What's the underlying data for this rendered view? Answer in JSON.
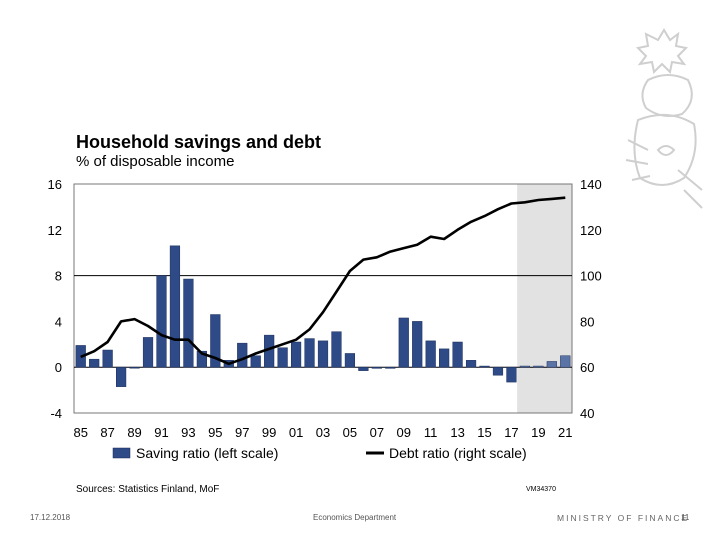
{
  "title": "Household savings and debt",
  "subtitle": "% of disposable income",
  "sources": "Sources: Statistics Finland, MoF",
  "chart_code": "VM34370",
  "footer": {
    "date": "17.12.2018",
    "department": "Economics Department",
    "ministry": "MINISTRY OF FINANCE",
    "page": "11"
  },
  "colors": {
    "bar": "#2e4a87",
    "bar_forecast": "#5a74a8",
    "line": "#000000",
    "shade": "#e2e2e2"
  },
  "chart_data": {
    "type": "bar+line",
    "years": [
      1985,
      1986,
      1987,
      1988,
      1989,
      1990,
      1991,
      1992,
      1993,
      1994,
      1995,
      1996,
      1997,
      1998,
      1999,
      2000,
      2001,
      2002,
      2003,
      2004,
      2005,
      2006,
      2007,
      2008,
      2009,
      2010,
      2011,
      2012,
      2013,
      2014,
      2015,
      2016,
      2017,
      2018,
      2019,
      2020,
      2021
    ],
    "x_tick_labels": [
      "85",
      "87",
      "89",
      "91",
      "93",
      "95",
      "97",
      "99",
      "01",
      "03",
      "05",
      "07",
      "09",
      "11",
      "13",
      "15",
      "17",
      "19",
      "21"
    ],
    "forecast_start_year": 2018,
    "series": [
      {
        "name": "Saving ratio (left scale)",
        "type": "bar",
        "axis": "left",
        "values": [
          1.9,
          0.7,
          1.5,
          -1.7,
          0.0,
          2.6,
          8.0,
          10.6,
          7.7,
          1.4,
          4.6,
          0.6,
          2.1,
          1.0,
          2.8,
          1.7,
          2.2,
          2.5,
          2.3,
          3.1,
          1.2,
          -0.3,
          -0.1,
          -0.1,
          4.3,
          4.0,
          2.3,
          1.6,
          2.2,
          0.6,
          0.1,
          -0.7,
          -1.3,
          0.1,
          0.1,
          0.5,
          1.0
        ]
      },
      {
        "name": "Debt ratio (right scale)",
        "type": "line",
        "axis": "right",
        "values": [
          64.5,
          67,
          71,
          80,
          81,
          78,
          74,
          72,
          72,
          66,
          64,
          61.5,
          63.5,
          66,
          68,
          70,
          72,
          76.5,
          84,
          93,
          102,
          107,
          108,
          110.5,
          112,
          113.5,
          117,
          116,
          120,
          123.5,
          126,
          129,
          131.5,
          132,
          133,
          133.5,
          134
        ]
      }
    ],
    "left_axis": {
      "ylim": [
        -4,
        16
      ],
      "ticks": [
        "16",
        "12",
        "8",
        "4",
        "0",
        "-4"
      ]
    },
    "right_axis": {
      "ylim": [
        40,
        140
      ],
      "ticks": [
        "140",
        "120",
        "100",
        "80",
        "60",
        "40"
      ]
    },
    "legend": [
      "Saving ratio (left scale)",
      "Debt ratio (right scale)"
    ],
    "legend_position": "bottom"
  }
}
